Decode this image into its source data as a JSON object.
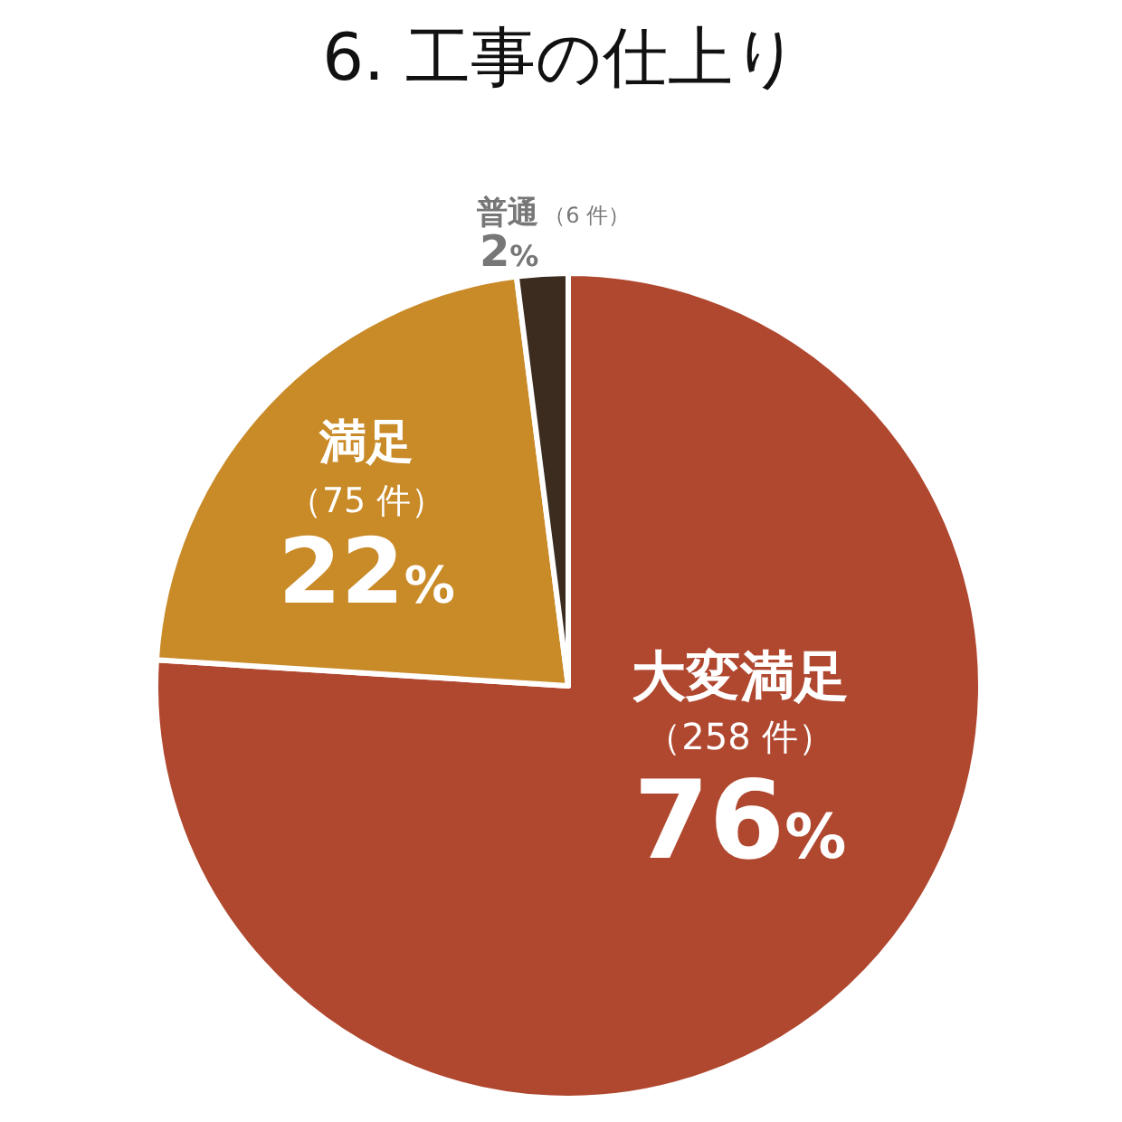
{
  "chart_data": {
    "type": "pie",
    "title": "6. 工事の仕上り",
    "categories": [
      "大変満足",
      "満足",
      "普通"
    ],
    "values": [
      76,
      22,
      2
    ],
    "value_labels": [
      "76%",
      "22%",
      "2%"
    ],
    "annotations": [
      "（258 件）",
      "（75 件）",
      "（6 件）"
    ],
    "colors": [
      "#b0472f",
      "#c98a28",
      "#3b2c1f"
    ],
    "legend": false
  }
}
